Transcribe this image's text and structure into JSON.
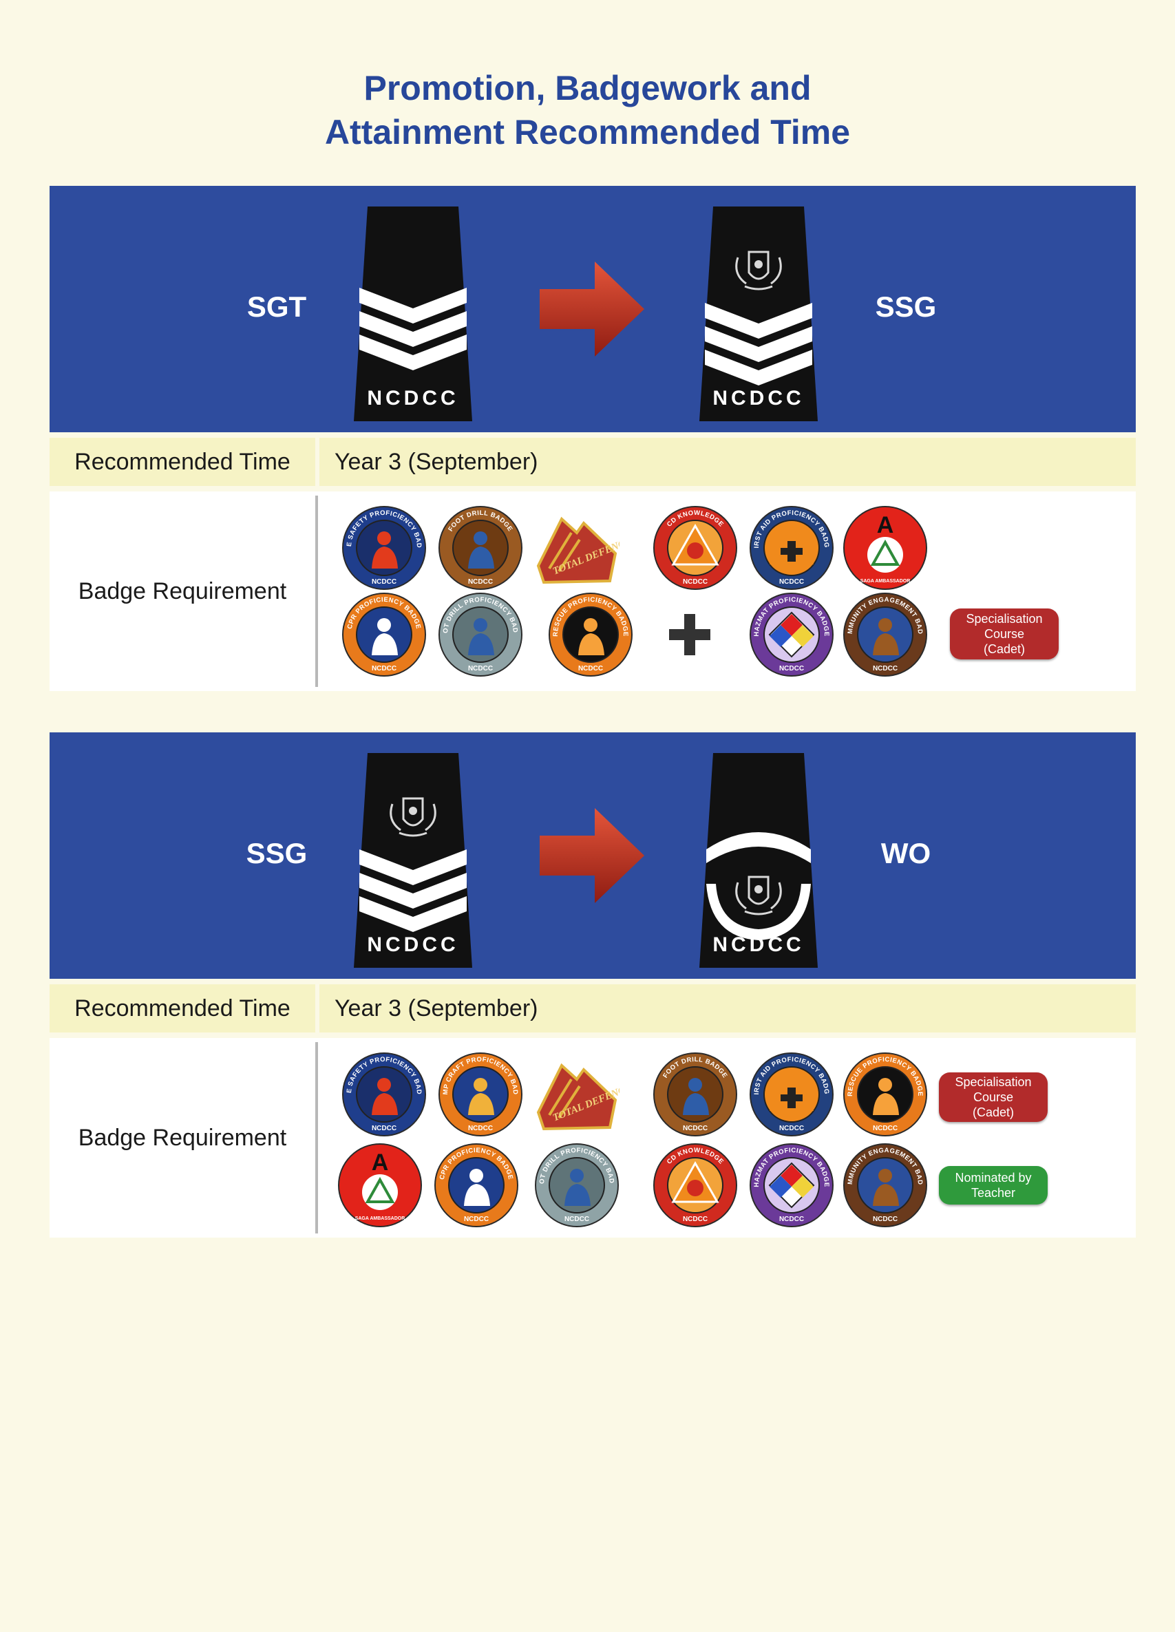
{
  "title": {
    "line1": "Promotion, Badgework and",
    "line2": "Attainment Recommended Time"
  },
  "colors": {
    "title": "#27479a",
    "rank_band": "#2e4c9e",
    "time_row": "#f6f3c5",
    "specialisation_pill": "#b22b2b",
    "nominated_pill": "#2f9a3c",
    "arrow": "#c8331e"
  },
  "sections": [
    {
      "from_rank": "SGT",
      "to_rank": "SSG",
      "from_epaulette": {
        "text": "NCDCC",
        "insignia": "chevron-3-icon"
      },
      "to_epaulette": {
        "text": "NCDCC",
        "insignia": "crest-chevron-3-icon"
      },
      "time_label": "Recommended Time",
      "time_value": "Year 3 (September)",
      "badge_label": "Badge Requirement",
      "badges_row1": [
        {
          "icon": "fire-safety-badge-icon",
          "ring": "FIRE SAFETY PROFICIENCY BADGE",
          "base": "NCDCC"
        },
        {
          "icon": "foot-drill-badge-icon",
          "ring": "FOOT DRILL BADGE",
          "base": "NCDCC"
        },
        {
          "icon": "total-defence-pin-icon",
          "ring": "TOTAL DEFENCE",
          "base": ""
        },
        {
          "icon": "cd-knowledge-badge-icon",
          "ring": "CD KNOWLEDGE",
          "base": "NCDCC"
        },
        {
          "icon": "first-aid-badge-icon",
          "ring": "FIRST AID PROFICIENCY BADGE",
          "base": "NCDCC"
        },
        {
          "icon": "saga-ambassador-badge-icon",
          "ring": "A",
          "base": "SAGA AMBASSADOR"
        }
      ],
      "badges_row2": [
        {
          "icon": "cpr-badge-icon",
          "ring": "CPR PROFICIENCY BADGE",
          "base": "NCDCC"
        },
        {
          "icon": "foot-drill-proficiency-badge-icon",
          "ring": "FOOT DRILL PROFICIENCY BADGE",
          "base": "NCDCC"
        },
        {
          "icon": "rescue-badge-icon",
          "ring": "RESCUE PROFICIENCY BADGE",
          "base": "NCDCC"
        },
        {
          "icon": "hazmat-badge-icon",
          "ring": "HAZMAT PROFICIENCY BADGE",
          "base": "NCDCC"
        },
        {
          "icon": "community-engagement-badge-icon",
          "ring": "COMMUNITY ENGAGEMENT BADGE",
          "base": "NCDCC"
        }
      ],
      "pills": [
        {
          "text": "Specialisation\nCourse\n(Cadet)",
          "kind": "specialisation"
        }
      ]
    },
    {
      "from_rank": "SSG",
      "to_rank": "WO",
      "from_epaulette": {
        "text": "NCDCC",
        "insignia": "crest-chevron-3-icon"
      },
      "to_epaulette": {
        "text": "NCDCC",
        "insignia": "warrant-officer-crest-icon"
      },
      "time_label": "Recommended Time",
      "time_value": "Year 3 (September)",
      "badge_label": "Badge Requirement",
      "badges_row1": [
        {
          "icon": "fire-safety-badge-icon",
          "ring": "FIRE SAFETY PROFICIENCY BADGE",
          "base": "NCDCC"
        },
        {
          "icon": "camp-craft-badge-icon",
          "ring": "CAMP CRAFT PROFICIENCY BADGE",
          "base": "NCDCC"
        },
        {
          "icon": "total-defence-pin-icon",
          "ring": "TOTAL DEFENCE",
          "base": ""
        },
        {
          "icon": "foot-drill-badge-icon",
          "ring": "FOOT DRILL BADGE",
          "base": "NCDCC"
        },
        {
          "icon": "first-aid-badge-icon",
          "ring": "FIRST AID PROFICIENCY BADGE",
          "base": "NCDCC"
        },
        {
          "icon": "rescue-badge-icon",
          "ring": "RESCUE PROFICIENCY BADGE",
          "base": "NCDCC"
        }
      ],
      "badges_row2": [
        {
          "icon": "saga-ambassador-badge-icon",
          "ring": "A",
          "base": "SAGA AMBASSADOR"
        },
        {
          "icon": "cpr-badge-icon",
          "ring": "CPR PROFICIENCY BADGE",
          "base": "NCDCC"
        },
        {
          "icon": "foot-drill-proficiency-badge-icon",
          "ring": "FOOT DRILL PROFICIENCY BADGE",
          "base": "NCDCC"
        },
        {
          "icon": "cd-knowledge-badge-icon",
          "ring": "CD KNOWLEDGE",
          "base": "NCDCC"
        },
        {
          "icon": "hazmat-badge-icon",
          "ring": "HAZMAT PROFICIENCY BADGE",
          "base": "NCDCC"
        },
        {
          "icon": "community-engagement-badge-icon",
          "ring": "COMMUNITY ENGAGEMENT BADGE",
          "base": "NCDCC"
        }
      ],
      "pills": [
        {
          "text": "Specialisation\nCourse\n(Cadet)",
          "kind": "specialisation"
        },
        {
          "text": "Nominated by\nTeacher",
          "kind": "nominated"
        }
      ]
    }
  ]
}
